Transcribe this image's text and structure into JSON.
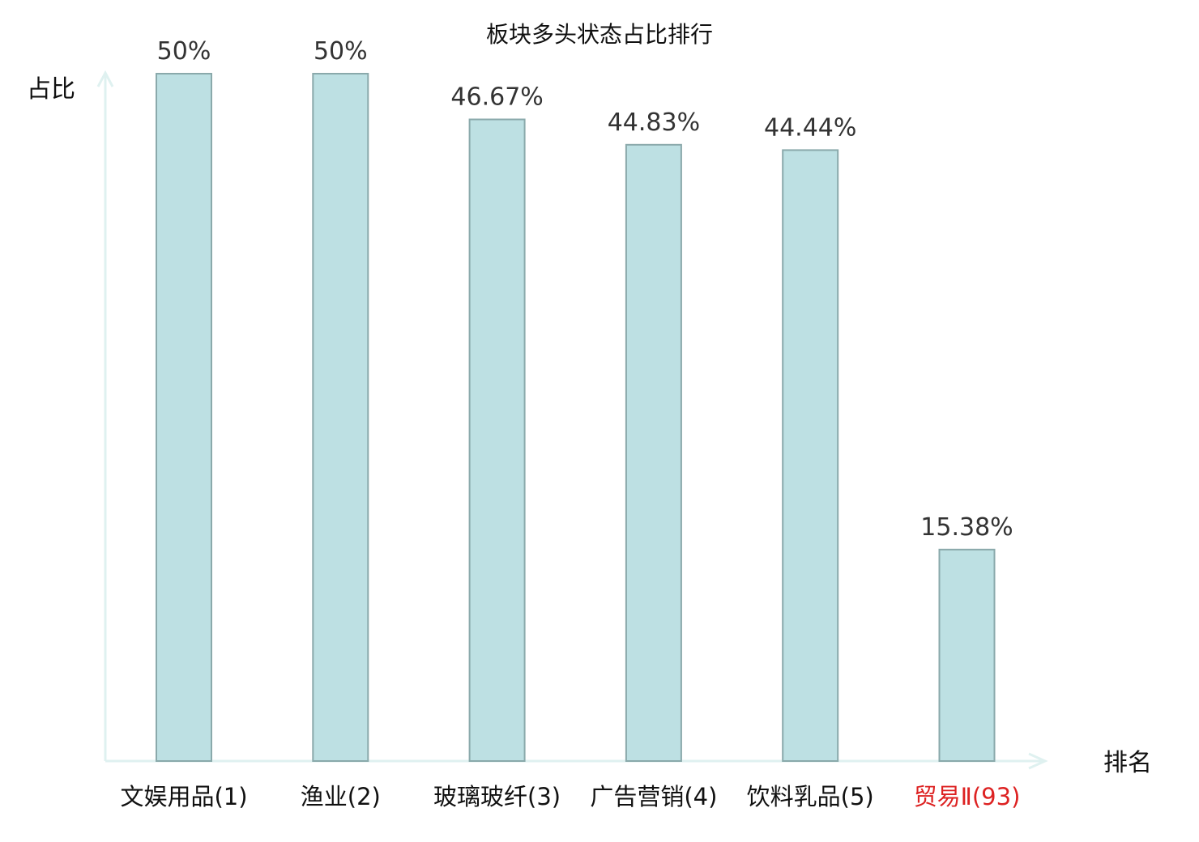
{
  "chart_data": {
    "type": "bar",
    "title": "板块多头状态占比排行",
    "ylabel": "占比",
    "xlabel": "排名",
    "ylim": [
      0,
      55
    ],
    "grid": false,
    "legend": "none",
    "categories": [
      "文娱用品(1)",
      "渔业(2)",
      "玻璃玻纤(3)",
      "广告营销(4)",
      "饮料乳品(5)",
      "贸易Ⅱ(93)"
    ],
    "values": [
      50,
      50,
      46.67,
      44.83,
      44.44,
      15.38
    ],
    "value_labels": [
      "50%",
      "50%",
      "46.67%",
      "44.83%",
      "44.44%",
      "15.38%"
    ],
    "category_colors": [
      "#111111",
      "#111111",
      "#111111",
      "#111111",
      "#111111",
      "#dd2222"
    ],
    "colors": {
      "bar_fill": "#bde0e3",
      "bar_stroke": "#8aa9ab",
      "axis": "#dff1f0"
    }
  }
}
